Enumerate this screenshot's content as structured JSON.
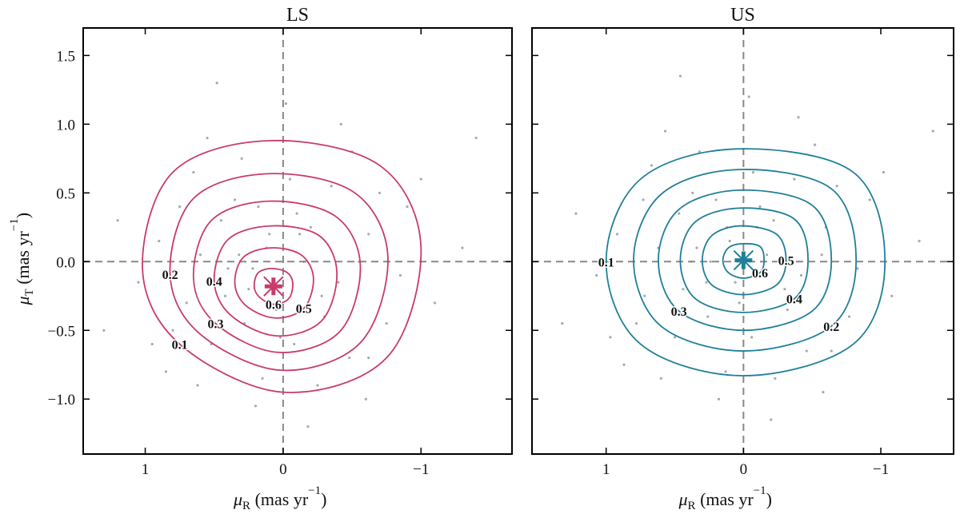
{
  "chart_data": [
    {
      "type": "scatter",
      "title": "LS",
      "xlabel": [
        "μ",
        "R",
        " (mas yr",
        "−1",
        ")"
      ],
      "ylabel": [
        "μ",
        "T",
        " (mas yr",
        "−1",
        ")"
      ],
      "xlim": [
        1.45,
        -1.66
      ],
      "ylim": [
        -1.4,
        1.7
      ],
      "xticks": [
        1,
        0,
        {
          "value": -1,
          "label": "−1"
        }
      ],
      "yticks": [
        {
          "value": -1,
          "label": "−1.0"
        },
        {
          "value": -0.5,
          "label": "−0.5"
        },
        {
          "value": 0,
          "label": "0.0"
        },
        {
          "value": 0.5,
          "label": "0.5"
        },
        {
          "value": 1,
          "label": "1.0"
        },
        {
          "value": 1.5,
          "label": "1.5"
        }
      ],
      "show_yticklabels": true,
      "zero_lines": true,
      "point_color": "#8c8c8c",
      "contour_color": "#c93a6d",
      "x": [
        0.12,
        -0.3,
        0.45,
        -0.62,
        0.8,
        -0.05,
        0.25,
        -0.48,
        0.6,
        -0.85,
        0.02,
        0.35,
        -0.2,
        0.7,
        -0.7,
        0.15,
        -0.4,
        0.52,
        -0.1,
        0.9,
        -1.1,
        0.3,
        -0.55,
        0.05,
        0.65,
        -0.25,
        1.2,
        -0.9,
        0.4,
        -0.15,
        0.2,
        -0.35,
        0.55,
        -0.75,
        0.1,
        0.85,
        -0.5,
        0.28,
        -0.08,
        1.05,
        -1.3,
        0.62,
        -0.28,
        0.18,
        -0.62,
        0.75,
        -0.02,
        0.42,
        -0.42,
        0.95,
        -1.0,
        0.08,
        0.32,
        -0.18,
        1.3,
        -1.4,
        0.48,
        -0.6,
        0.22,
        -0.12
      ],
      "y": [
        0.1,
        -0.4,
        0.3,
        0.2,
        -0.5,
        0.6,
        -0.2,
        -0.7,
        0.05,
        -0.1,
        -0.55,
        0.45,
        0.25,
        -0.3,
        0.5,
        -0.85,
        -0.15,
        -0.6,
        0.35,
        0.15,
        -0.3,
        0.75,
        0.0,
        -0.35,
        0.65,
        -0.9,
        0.3,
        0.4,
        -0.05,
        0.0,
        -1.05,
        0.55,
        0.9,
        -0.45,
        0.2,
        -0.8,
        0.8,
        -0.45,
        -0.6,
        -0.15,
        0.1,
        -0.9,
        -0.25,
        0.4,
        -0.7,
        0.4,
        1.15,
        -0.25,
        1.0,
        -0.6,
        0.6,
        -0.2,
        0.05,
        -1.2,
        -0.5,
        0.9,
        1.3,
        -1.0,
        -0.05,
        0.2
      ],
      "contours": [
        {
          "level": 0.1,
          "x": [
            1.02,
            0.8,
            0.1,
            -0.7,
            -1.0,
            -0.75,
            0.0,
            0.75
          ],
          "y": [
            -0.05,
            0.65,
            0.88,
            0.7,
            0.1,
            -0.7,
            -0.95,
            -0.6
          ]
        },
        {
          "level": 0.2,
          "x": [
            0.82,
            0.65,
            0.1,
            -0.52,
            -0.76,
            -0.56,
            0.02,
            0.61
          ],
          "y": [
            -0.09,
            0.46,
            0.64,
            0.5,
            0.03,
            -0.59,
            -0.79,
            -0.52
          ]
        },
        {
          "level": 0.3,
          "x": [
            0.65,
            0.52,
            0.1,
            -0.38,
            -0.56,
            -0.41,
            0.04,
            0.49
          ],
          "y": [
            -0.12,
            0.3,
            0.44,
            0.33,
            -0.03,
            -0.51,
            -0.66,
            -0.45
          ]
        },
        {
          "level": 0.4,
          "x": [
            0.5,
            0.4,
            0.09,
            -0.26,
            -0.39,
            -0.28,
            0.05,
            0.38
          ],
          "y": [
            -0.14,
            0.16,
            0.26,
            0.19,
            -0.08,
            -0.43,
            -0.54,
            -0.39
          ]
        },
        {
          "level": 0.5,
          "x": [
            0.35,
            0.29,
            0.09,
            -0.13,
            -0.22,
            -0.15,
            0.06,
            0.27
          ],
          "y": [
            -0.16,
            0.03,
            0.1,
            0.05,
            -0.12,
            -0.34,
            -0.41,
            -0.32
          ]
        },
        {
          "level": 0.6,
          "x": [
            0.21,
            0.18,
            0.08,
            -0.03,
            -0.07,
            -0.04,
            0.07,
            0.17
          ],
          "y": [
            -0.18,
            -0.08,
            -0.05,
            -0.08,
            -0.16,
            -0.27,
            -0.31,
            -0.26
          ]
        }
      ],
      "center": {
        "x": 0.07,
        "y": -0.18
      }
    },
    {
      "type": "scatter",
      "title": "US",
      "xlabel": [
        "μ",
        "R",
        " (mas yr",
        "−1",
        ")"
      ],
      "xlim": [
        1.54,
        -1.53
      ],
      "ylim": [
        -1.4,
        1.7
      ],
      "xticks": [
        1,
        0,
        {
          "value": -1,
          "label": "−1"
        }
      ],
      "yticks": [
        -1,
        -0.5,
        0,
        0.5,
        1,
        1.5
      ],
      "show_yticklabels": false,
      "zero_lines": true,
      "point_color": "#8c8c8c",
      "contour_color": "#1f7f99",
      "x": [
        0.1,
        -0.32,
        0.47,
        -0.6,
        0.78,
        -0.07,
        0.27,
        -0.46,
        0.62,
        -0.83,
        0.0,
        0.37,
        -0.22,
        0.72,
        -0.68,
        0.13,
        -0.42,
        0.5,
        -0.12,
        0.92,
        -1.08,
        0.32,
        -0.57,
        0.03,
        0.67,
        -0.23,
        1.22,
        -0.92,
        0.38,
        -0.17,
        0.18,
        -0.37,
        0.57,
        -0.77,
        0.12,
        0.87,
        -0.52,
        0.26,
        -0.06,
        1.07,
        -1.28,
        0.6,
        -0.3,
        0.2,
        -0.64,
        0.73,
        -0.04,
        0.44,
        -0.4,
        0.97,
        -1.02,
        0.06,
        0.34,
        -0.2,
        1.32,
        -1.38,
        0.46,
        -0.58,
        0.24,
        -0.1
      ],
      "y": [
        0.15,
        -0.35,
        0.35,
        0.25,
        -0.45,
        0.65,
        -0.15,
        -0.65,
        0.1,
        -0.05,
        -0.5,
        0.5,
        0.3,
        -0.25,
        0.55,
        -0.8,
        -0.1,
        -0.55,
        0.4,
        0.2,
        -0.25,
        0.8,
        0.05,
        -0.3,
        0.7,
        -0.85,
        0.35,
        0.45,
        0.0,
        0.05,
        -1.0,
        0.6,
        0.95,
        -0.4,
        0.25,
        -0.75,
        0.85,
        -0.4,
        -0.55,
        -0.1,
        0.15,
        -0.85,
        -0.2,
        0.45,
        -0.65,
        0.45,
        1.2,
        -0.2,
        1.05,
        -0.55,
        0.65,
        -0.15,
        0.1,
        -1.15,
        -0.45,
        0.95,
        1.35,
        -0.95,
        0.0,
        0.25
      ],
      "contours": [
        {
          "level": 0.1,
          "x": [
            1.0,
            0.75,
            0.05,
            -0.8,
            -1.03,
            -0.8,
            0.0,
            0.75
          ],
          "y": [
            0.0,
            0.6,
            0.82,
            0.65,
            0.0,
            -0.6,
            -0.83,
            -0.6
          ]
        },
        {
          "level": 0.2,
          "x": [
            0.8,
            0.6,
            0.04,
            -0.64,
            -0.82,
            -0.64,
            0.0,
            0.6
          ],
          "y": [
            0.01,
            0.49,
            0.67,
            0.53,
            0.01,
            -0.47,
            -0.65,
            -0.47
          ]
        },
        {
          "level": 0.3,
          "x": [
            0.62,
            0.47,
            0.03,
            -0.5,
            -0.64,
            -0.5,
            0.0,
            0.47
          ],
          "y": [
            0.01,
            0.38,
            0.52,
            0.41,
            0.01,
            -0.36,
            -0.5,
            -0.36
          ]
        },
        {
          "level": 0.4,
          "x": [
            0.46,
            0.35,
            0.02,
            -0.37,
            -0.47,
            -0.37,
            0.0,
            0.35
          ],
          "y": [
            0.01,
            0.29,
            0.39,
            0.31,
            0.01,
            -0.27,
            -0.37,
            -0.27
          ]
        },
        {
          "level": 0.5,
          "x": [
            0.3,
            0.23,
            0.02,
            -0.24,
            -0.31,
            -0.24,
            0.0,
            0.23
          ],
          "y": [
            0.01,
            0.19,
            0.26,
            0.2,
            0.01,
            -0.17,
            -0.24,
            -0.17
          ]
        },
        {
          "level": 0.6,
          "x": [
            0.15,
            0.11,
            0.01,
            -0.12,
            -0.15,
            -0.12,
            0.0,
            0.11
          ],
          "y": [
            0.01,
            0.1,
            0.13,
            0.11,
            0.01,
            -0.08,
            -0.12,
            -0.08
          ]
        }
      ],
      "center": {
        "x": 0.0,
        "y": 0.01
      }
    }
  ]
}
